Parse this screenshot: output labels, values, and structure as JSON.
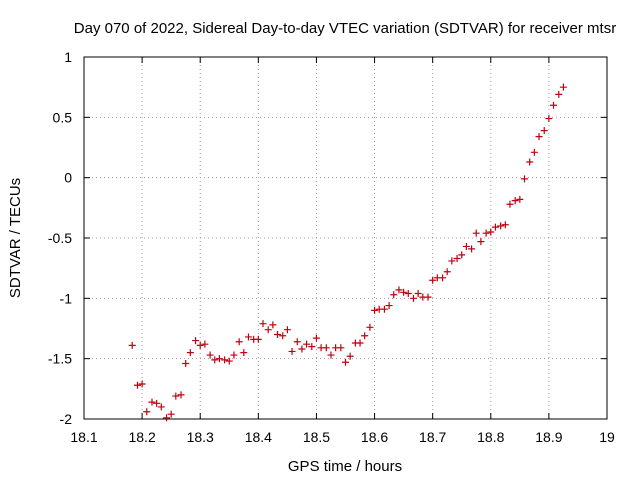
{
  "chart_data": {
    "type": "scatter",
    "title": "Day 070 of 2022, Sidereal Day-to-day VTEC variation (SDTVAR) for receiver mtsr",
    "xlabel": "GPS time / hours",
    "ylabel": "SDTVAR / TECUs",
    "xlim": [
      18.1,
      19.0
    ],
    "ylim": [
      -2.0,
      1.0
    ],
    "x_ticks": [
      18.1,
      18.2,
      18.3,
      18.4,
      18.5,
      18.6,
      18.7,
      18.8,
      18.9,
      19.0
    ],
    "x_tick_labels": [
      "18.1",
      "18.2",
      "18.3",
      "18.4",
      "18.5",
      "18.6",
      "18.7",
      "18.8",
      "18.9",
      "19"
    ],
    "y_ticks": [
      -2.0,
      -1.5,
      -1.0,
      -0.5,
      0.0,
      0.5,
      1.0
    ],
    "y_tick_labels": [
      "-2",
      "-1.5",
      "-1",
      "-0.5",
      "0",
      "0.5",
      "1"
    ],
    "grid": true,
    "marker": "+",
    "marker_color": "#c0000f",
    "series": [
      {
        "name": "SDTVAR",
        "x": [
          18.183,
          18.192,
          18.2,
          18.208,
          18.217,
          18.225,
          18.233,
          18.242,
          18.25,
          18.258,
          18.267,
          18.275,
          18.283,
          18.292,
          18.3,
          18.308,
          18.317,
          18.325,
          18.333,
          18.342,
          18.35,
          18.358,
          18.367,
          18.375,
          18.383,
          18.392,
          18.4,
          18.408,
          18.417,
          18.425,
          18.433,
          18.442,
          18.45,
          18.458,
          18.467,
          18.475,
          18.483,
          18.492,
          18.5,
          18.508,
          18.517,
          18.525,
          18.533,
          18.542,
          18.55,
          18.558,
          18.567,
          18.575,
          18.583,
          18.592,
          18.6,
          18.608,
          18.617,
          18.625,
          18.633,
          18.642,
          18.65,
          18.658,
          18.667,
          18.675,
          18.683,
          18.692,
          18.7,
          18.708,
          18.717,
          18.725,
          18.733,
          18.742,
          18.75,
          18.758,
          18.767,
          18.775,
          18.783,
          18.792,
          18.8,
          18.808,
          18.817,
          18.825,
          18.833,
          18.842,
          18.85,
          18.858,
          18.867,
          18.875,
          18.883,
          18.892,
          18.9,
          18.908,
          18.917,
          18.925
        ],
        "y": [
          -1.39,
          -1.72,
          -1.71,
          -1.94,
          -1.86,
          -1.87,
          -1.9,
          -1.99,
          -1.96,
          -1.81,
          -1.8,
          -1.54,
          -1.45,
          -1.35,
          -1.39,
          -1.38,
          -1.47,
          -1.51,
          -1.5,
          -1.51,
          -1.52,
          -1.47,
          -1.36,
          -1.45,
          -1.32,
          -1.34,
          -1.34,
          -1.21,
          -1.26,
          -1.22,
          -1.3,
          -1.31,
          -1.26,
          -1.44,
          -1.36,
          -1.42,
          -1.38,
          -1.4,
          -1.33,
          -1.41,
          -1.41,
          -1.47,
          -1.41,
          -1.41,
          -1.53,
          -1.48,
          -1.37,
          -1.37,
          -1.31,
          -1.24,
          -1.1,
          -1.09,
          -1.09,
          -1.06,
          -0.97,
          -0.93,
          -0.95,
          -0.96,
          -1.0,
          -0.96,
          -0.99,
          -0.99,
          -0.85,
          -0.83,
          -0.83,
          -0.78,
          -0.69,
          -0.67,
          -0.64,
          -0.57,
          -0.59,
          -0.46,
          -0.53,
          -0.46,
          -0.45,
          -0.41,
          -0.4,
          -0.39,
          -0.22,
          -0.19,
          -0.18,
          -0.01,
          0.13,
          0.21,
          0.34,
          0.39,
          0.49,
          0.6,
          0.69,
          0.75
        ]
      }
    ]
  }
}
